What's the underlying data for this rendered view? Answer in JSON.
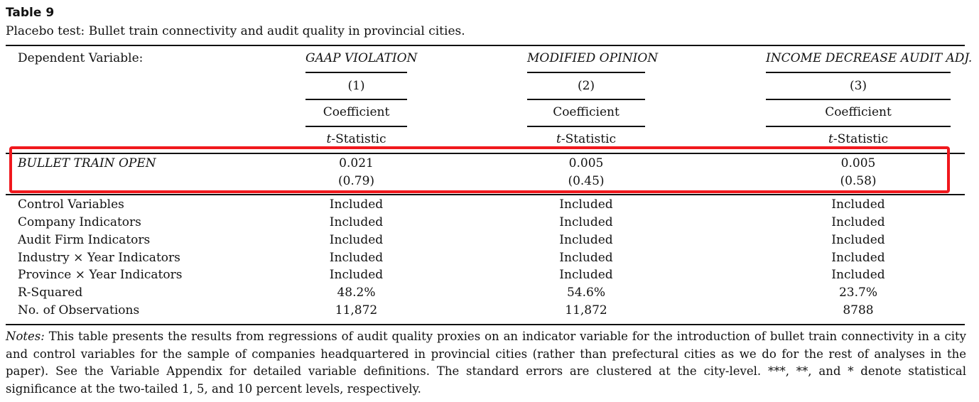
{
  "table": {
    "label": "Table 9",
    "caption": "Placebo test: Bullet train connectivity and audit quality in provincial cities."
  },
  "header": {
    "dependent_label": "Dependent Variable:",
    "columns": [
      {
        "name": "GAAP VIOLATION",
        "number": "(1)",
        "coef": "Coefficient",
        "tstat_prefix": "t",
        "tstat_suffix": "-Statistic"
      },
      {
        "name": "MODIFIED OPINION",
        "number": "(2)",
        "coef": "Coefficient",
        "tstat_prefix": "t",
        "tstat_suffix": "-Statistic"
      },
      {
        "name": "INCOME DECREASE AUDIT ADJ.",
        "number": "(3)",
        "coef": "Coefficient",
        "tstat_prefix": "t",
        "tstat_suffix": "-Statistic"
      }
    ]
  },
  "main_row": {
    "label": "BULLET TRAIN OPEN",
    "coefficients": [
      "0.021",
      "0.005",
      "0.005"
    ],
    "tstats": [
      "(0.79)",
      "(0.45)",
      "(0.58)"
    ]
  },
  "rows": [
    {
      "label": "Control Variables",
      "values": [
        "Included",
        "Included",
        "Included"
      ]
    },
    {
      "label": "Company Indicators",
      "values": [
        "Included",
        "Included",
        "Included"
      ]
    },
    {
      "label": "Audit Firm Indicators",
      "values": [
        "Included",
        "Included",
        "Included"
      ]
    },
    {
      "label": "Industry × Year Indicators",
      "values": [
        "Included",
        "Included",
        "Included"
      ]
    },
    {
      "label": "Province × Year Indicators",
      "values": [
        "Included",
        "Included",
        "Included"
      ]
    },
    {
      "label": "R-Squared",
      "values": [
        "48.2%",
        "54.6%",
        "23.7%"
      ]
    },
    {
      "label": "No. of Observations",
      "values": [
        "11,872",
        "11,872",
        "8788"
      ]
    }
  ],
  "notes": {
    "label": "Notes:",
    "text": " This table presents the results from regressions of audit quality proxies on an indicator variable for the introduction of bullet train connectivity in a city and control variables for the sample of companies headquartered in provincial cities (rather than prefectural cities as we do for the rest of analyses in the paper). See the Variable Appendix for detailed variable definitions. The standard errors are clustered at the city-level. ***, **, and * denote statistical significance at the two-tailed 1, 5, and 10 percent levels, respectively."
  },
  "highlight_color": "#f0181d"
}
